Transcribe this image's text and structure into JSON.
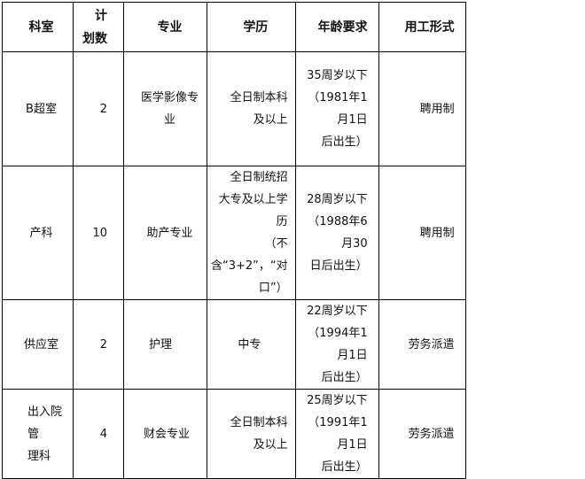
{
  "headers": [
    "科室",
    "计\n划数",
    "专业",
    "学历",
    "年龄要求",
    "用工形式"
  ],
  "rows": [
    {
      "dept": "B超室",
      "count": "2",
      "major": "医学影像专\n业",
      "edu": "全日制本科\n及以上",
      "age": "35周岁以下\n（1981年1月1日\n后出生）",
      "type": "聘用制"
    },
    {
      "dept": "产科",
      "count": "10",
      "major": "助产专业",
      "edu": "全日制统招\n大专及以上学历\n（不\n含“3+2”，“对\n口”）",
      "age": "28周岁以下\n（1988年6月30\n日后出生）",
      "type": "聘用制"
    },
    {
      "dept": "供应室",
      "count": "2",
      "major": "护理",
      "edu": "中专",
      "age": "22周岁以下\n（1994年1月1日\n后出生）",
      "type": "劳务派遣"
    },
    {
      "dept": "出入院管\n理科",
      "count": "4",
      "major": "财会专业",
      "edu": "全日制本科\n及以上",
      "age": "25周岁以下\n（1991年1月1日\n后出生）",
      "type": "劳务派遣"
    }
  ]
}
